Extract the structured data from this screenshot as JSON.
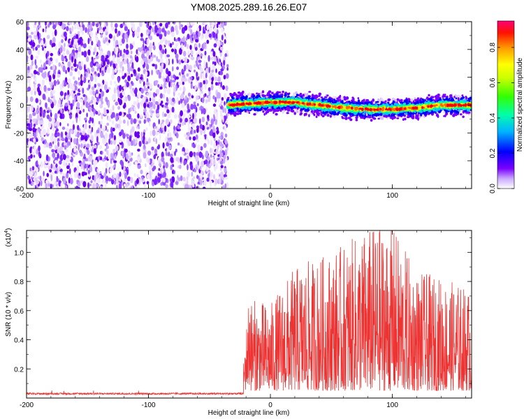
{
  "title": "YM08.2025.289.16.26.E07",
  "chart_data": [
    {
      "type": "heatmap",
      "xlabel": "Height of straight line (km)",
      "ylabel": "Frequency (Hz)",
      "xlim": [
        -200,
        165
      ],
      "ylim": [
        -60,
        60
      ],
      "xticks": [
        -200,
        -100,
        0,
        100
      ],
      "yticks": [
        -60,
        -40,
        -20,
        0,
        20,
        40,
        60
      ],
      "noise_region_x": [
        -200,
        -35
      ],
      "signal_region_x": [
        -35,
        165
      ],
      "ridge": {
        "x": [
          -35,
          -20,
          0,
          20,
          40,
          60,
          80,
          100,
          120,
          140,
          165
        ],
        "frequency": [
          0,
          1,
          2,
          2,
          0,
          -2,
          -3,
          -3,
          -2,
          0,
          0
        ]
      },
      "colorbar": {
        "label": "Normalized spectral amplitude",
        "range": [
          0,
          0.95
        ],
        "ticks": [
          0.0,
          0.2,
          0.4,
          0.6,
          0.8
        ],
        "tick_labels": [
          "0.0",
          "0.2",
          "0.4",
          "0.6",
          "0.8"
        ],
        "colors": [
          "#ffffff",
          "#7700ff",
          "#0000ff",
          "#00c8ff",
          "#00ff88",
          "#88ff00",
          "#ffff00",
          "#ff8800",
          "#ff0000",
          "#ff0088"
        ]
      }
    },
    {
      "type": "line",
      "xlabel": "Height of straight line (km)",
      "ylabel": "SNR (10 * v/v)",
      "y_multiplier": "(x10",
      "y_multiplier_exp": "4",
      "y_multiplier_close": ")",
      "xlim": [
        -200,
        165
      ],
      "ylim": [
        0,
        1.15
      ],
      "xticks": [
        -200,
        -100,
        0,
        100
      ],
      "yticks": [
        0.2,
        0.4,
        0.6,
        0.8,
        1.0
      ],
      "ytick_labels": [
        "0.2",
        "0.4",
        "0.6",
        "0.8",
        "1.0"
      ],
      "color": "#ee3333",
      "noise_floor": 0.03,
      "onset_x": -22,
      "envelope": {
        "x": [
          -22,
          0,
          20,
          40,
          60,
          80,
          100,
          120,
          140,
          165
        ],
        "peak": [
          0.65,
          0.6,
          0.85,
          0.92,
          1.0,
          1.12,
          1.14,
          0.82,
          0.78,
          0.7
        ]
      }
    }
  ]
}
